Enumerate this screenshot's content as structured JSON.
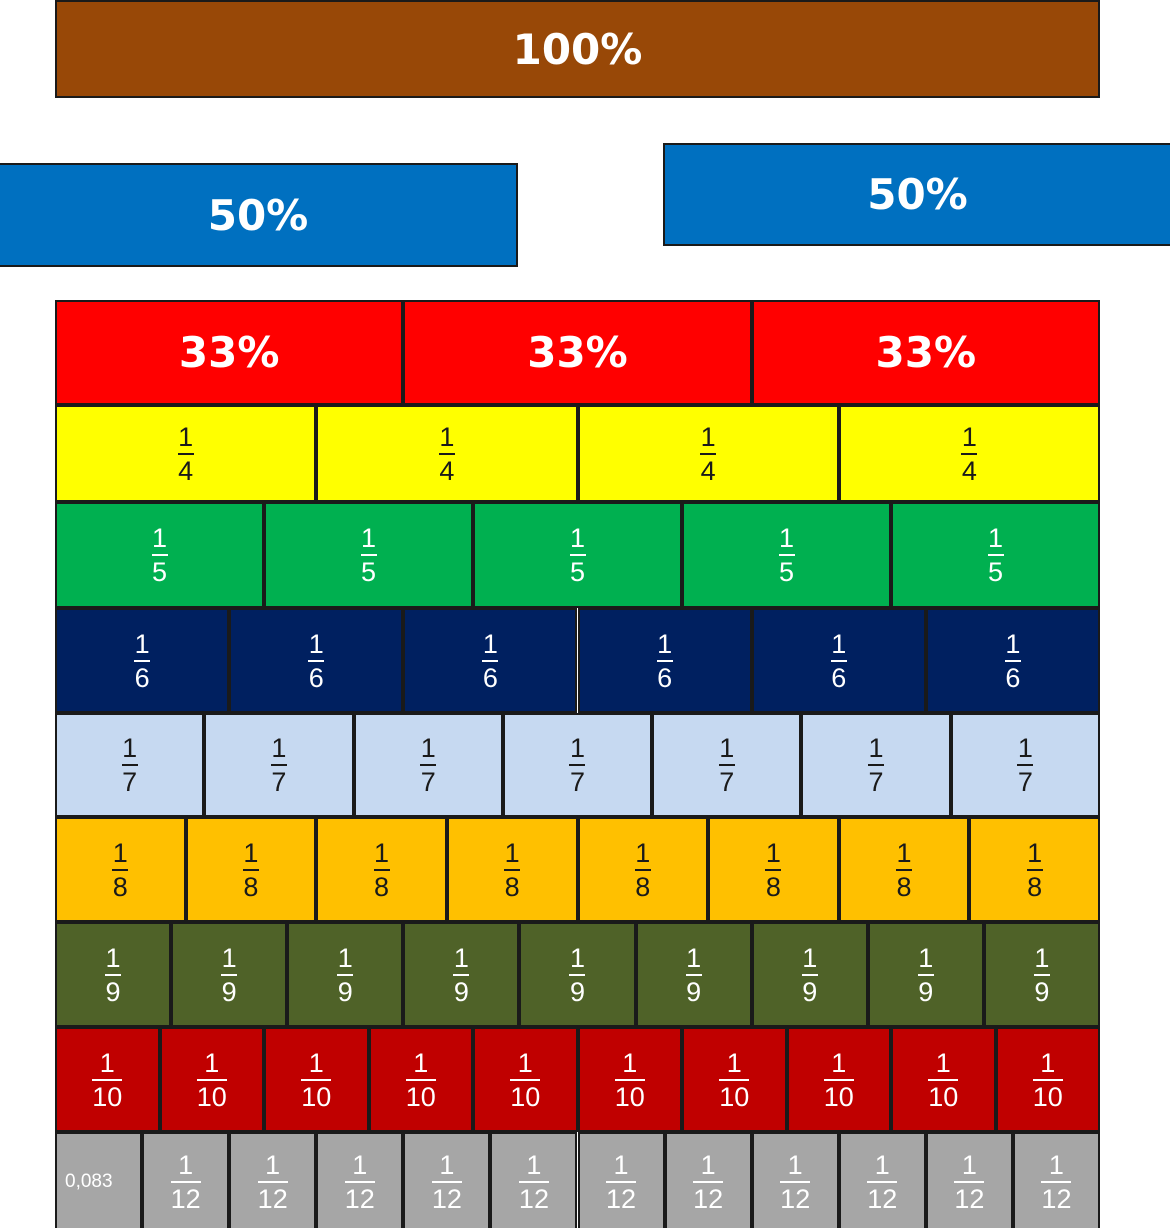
{
  "rows": [
    {
      "cells": [
        {
          "label": "100%"
        }
      ]
    },
    {
      "cells": [
        {
          "label": "50%"
        },
        {
          "label": "50%"
        }
      ]
    },
    {
      "cells": [
        {
          "label": "33%"
        },
        {
          "label": "33%"
        },
        {
          "label": "33%"
        }
      ]
    },
    {
      "cells": [
        {
          "numerator": "1",
          "denominator": "4"
        },
        {
          "numerator": "1",
          "denominator": "4"
        },
        {
          "numerator": "1",
          "denominator": "4"
        },
        {
          "numerator": "1",
          "denominator": "4"
        }
      ]
    },
    {
      "cells": [
        {
          "numerator": "1",
          "denominator": "5"
        },
        {
          "numerator": "1",
          "denominator": "5"
        },
        {
          "numerator": "1",
          "denominator": "5"
        },
        {
          "numerator": "1",
          "denominator": "5"
        },
        {
          "numerator": "1",
          "denominator": "5"
        }
      ]
    },
    {
      "cells": [
        {
          "numerator": "1",
          "denominator": "6"
        },
        {
          "numerator": "1",
          "denominator": "6"
        },
        {
          "numerator": "1",
          "denominator": "6"
        },
        {
          "numerator": "1",
          "denominator": "6"
        },
        {
          "numerator": "1",
          "denominator": "6"
        },
        {
          "numerator": "1",
          "denominator": "6"
        }
      ]
    },
    {
      "cells": [
        {
          "numerator": "1",
          "denominator": "7"
        },
        {
          "numerator": "1",
          "denominator": "7"
        },
        {
          "numerator": "1",
          "denominator": "7"
        },
        {
          "numerator": "1",
          "denominator": "7"
        },
        {
          "numerator": "1",
          "denominator": "7"
        },
        {
          "numerator": "1",
          "denominator": "7"
        },
        {
          "numerator": "1",
          "denominator": "7"
        }
      ]
    },
    {
      "cells": [
        {
          "numerator": "1",
          "denominator": "8"
        },
        {
          "numerator": "1",
          "denominator": "8"
        },
        {
          "numerator": "1",
          "denominator": "8"
        },
        {
          "numerator": "1",
          "denominator": "8"
        },
        {
          "numerator": "1",
          "denominator": "8"
        },
        {
          "numerator": "1",
          "denominator": "8"
        },
        {
          "numerator": "1",
          "denominator": "8"
        },
        {
          "numerator": "1",
          "denominator": "8"
        }
      ]
    },
    {
      "cells": [
        {
          "numerator": "1",
          "denominator": "9"
        },
        {
          "numerator": "1",
          "denominator": "9"
        },
        {
          "numerator": "1",
          "denominator": "9"
        },
        {
          "numerator": "1",
          "denominator": "9"
        },
        {
          "numerator": "1",
          "denominator": "9"
        },
        {
          "numerator": "1",
          "denominator": "9"
        },
        {
          "numerator": "1",
          "denominator": "9"
        },
        {
          "numerator": "1",
          "denominator": "9"
        },
        {
          "numerator": "1",
          "denominator": "9"
        }
      ]
    },
    {
      "cells": [
        {
          "numerator": "1",
          "denominator": "10"
        },
        {
          "numerator": "1",
          "denominator": "10"
        },
        {
          "numerator": "1",
          "denominator": "10"
        },
        {
          "numerator": "1",
          "denominator": "10"
        },
        {
          "numerator": "1",
          "denominator": "10"
        },
        {
          "numerator": "1",
          "denominator": "10"
        },
        {
          "numerator": "1",
          "denominator": "10"
        },
        {
          "numerator": "1",
          "denominator": "10"
        },
        {
          "numerator": "1",
          "denominator": "10"
        },
        {
          "numerator": "1",
          "denominator": "10"
        }
      ]
    },
    {
      "cells": [
        {
          "label": "0,083"
        },
        {
          "numerator": "1",
          "denominator": "12"
        },
        {
          "numerator": "1",
          "denominator": "12"
        },
        {
          "numerator": "1",
          "denominator": "12"
        },
        {
          "numerator": "1",
          "denominator": "12"
        },
        {
          "numerator": "1",
          "denominator": "12"
        },
        {
          "numerator": "1",
          "denominator": "12"
        },
        {
          "numerator": "1",
          "denominator": "12"
        },
        {
          "numerator": "1",
          "denominator": "12"
        },
        {
          "numerator": "1",
          "denominator": "12"
        },
        {
          "numerator": "1",
          "denominator": "12"
        },
        {
          "numerator": "1",
          "denominator": "12"
        }
      ]
    }
  ]
}
